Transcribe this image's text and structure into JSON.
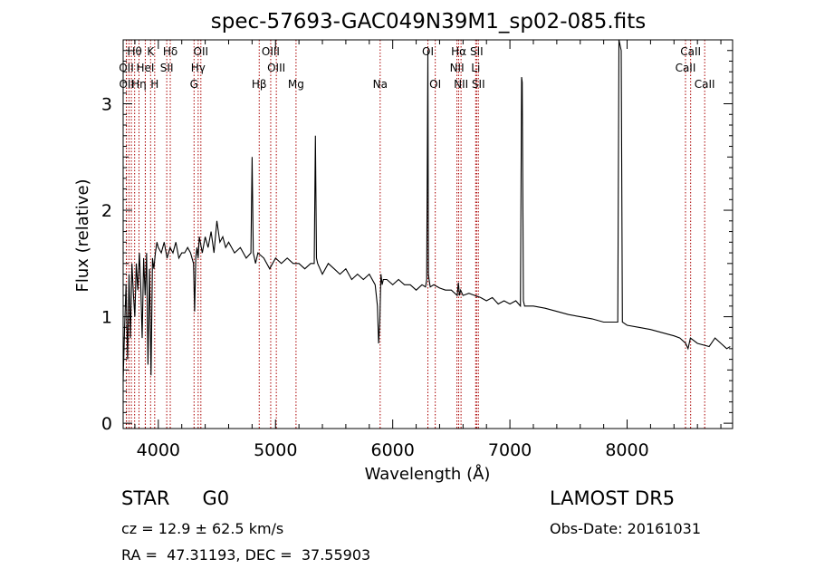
{
  "chart_data": {
    "type": "line",
    "title": "spec-57693-GAC049N39M1_sp02-085.fits",
    "xlabel": "Wavelength (Å)",
    "ylabel": "Flux (relative)",
    "xlim": [
      3700,
      8900
    ],
    "ylim": [
      -0.05,
      3.6
    ],
    "x_ticks": [
      4000,
      5000,
      6000,
      7000,
      8000
    ],
    "y_ticks": [
      0,
      1,
      2,
      3
    ],
    "line_color": "#000000",
    "marker_color": "#aa0000",
    "series": [
      {
        "x": [
          3700,
          3712,
          3725,
          3738,
          3750,
          3762,
          3775,
          3788,
          3800,
          3812,
          3825,
          3838,
          3850,
          3862,
          3875,
          3888,
          3900,
          3912,
          3925,
          3938,
          3950,
          3962,
          3975,
          3988,
          4000,
          4025,
          4050,
          4075,
          4100,
          4125,
          4150,
          4175,
          4200,
          4225,
          4250,
          4275,
          4300,
          4310,
          4320,
          4330,
          4340,
          4350,
          4375,
          4400,
          4425,
          4450,
          4475,
          4500,
          4525,
          4550,
          4575,
          4600,
          4650,
          4700,
          4750,
          4790,
          4800,
          4810,
          4820,
          4830,
          4850,
          4900,
          4950,
          5000,
          5050,
          5100,
          5150,
          5200,
          5250,
          5300,
          5330,
          5340,
          5350,
          5360,
          5400,
          5450,
          5500,
          5550,
          5600,
          5650,
          5700,
          5750,
          5800,
          5850,
          5870,
          5880,
          5890,
          5900,
          5910,
          5920,
          5950,
          6000,
          6050,
          6100,
          6150,
          6200,
          6250,
          6280,
          6290,
          6300,
          6305,
          6310,
          6320,
          6350,
          6400,
          6450,
          6500,
          6550,
          6560,
          6570,
          6580,
          6600,
          6650,
          6700,
          6750,
          6800,
          6850,
          6900,
          6950,
          7000,
          7050,
          7090,
          7100,
          7105,
          7115,
          7125,
          7200,
          7300,
          7400,
          7500,
          7600,
          7700,
          7800,
          7900,
          7920,
          7930,
          7950,
          7960,
          8000,
          8100,
          8200,
          8300,
          8400,
          8450,
          8500,
          8520,
          8540,
          8600,
          8700,
          8750,
          8800,
          8850,
          8880
        ],
        "y": [
          0.4,
          0.9,
          1.3,
          0.6,
          1.4,
          0.8,
          1.5,
          1.2,
          1.0,
          1.5,
          1.25,
          1.6,
          1.3,
          0.8,
          1.55,
          1.2,
          1.6,
          0.55,
          1.45,
          0.45,
          1.55,
          1.45,
          1.6,
          1.7,
          1.65,
          1.6,
          1.7,
          1.55,
          1.65,
          1.6,
          1.7,
          1.55,
          1.6,
          1.6,
          1.65,
          1.6,
          1.5,
          1.05,
          1.55,
          1.65,
          1.55,
          1.75,
          1.6,
          1.75,
          1.65,
          1.8,
          1.6,
          1.9,
          1.7,
          1.75,
          1.65,
          1.7,
          1.6,
          1.65,
          1.55,
          1.6,
          2.5,
          1.6,
          1.55,
          1.5,
          1.6,
          1.55,
          1.45,
          1.55,
          1.5,
          1.55,
          1.5,
          1.5,
          1.45,
          1.5,
          1.5,
          2.7,
          1.55,
          1.5,
          1.4,
          1.5,
          1.45,
          1.4,
          1.45,
          1.35,
          1.4,
          1.35,
          1.4,
          1.3,
          1.1,
          0.75,
          0.95,
          1.4,
          1.3,
          1.35,
          1.35,
          1.3,
          1.35,
          1.3,
          1.3,
          1.25,
          1.3,
          1.28,
          1.35,
          3.5,
          1.4,
          1.35,
          1.28,
          1.3,
          1.27,
          1.25,
          1.25,
          1.2,
          1.32,
          1.2,
          1.25,
          1.2,
          1.22,
          1.2,
          1.18,
          1.15,
          1.18,
          1.12,
          1.15,
          1.12,
          1.15,
          1.1,
          3.25,
          3.2,
          1.15,
          1.1,
          1.1,
          1.08,
          1.05,
          1.02,
          1.0,
          0.98,
          0.95,
          0.95,
          0.95,
          3.6,
          3.5,
          0.95,
          0.92,
          0.9,
          0.88,
          0.85,
          0.82,
          0.8,
          0.75,
          0.7,
          0.8,
          0.75,
          0.72,
          0.8,
          0.75,
          0.7,
          0.72
        ]
      }
    ],
    "lines": [
      {
        "label": "Hθ",
        "x": 3798,
        "row": 0
      },
      {
        "label": "K",
        "x": 3934,
        "row": 0
      },
      {
        "label": "Hδ",
        "x": 4102,
        "row": 0
      },
      {
        "label": "OII",
        "x": 4363,
        "row": 0
      },
      {
        "label": "OIII",
        "x": 4959,
        "row": 0
      },
      {
        "label": "OI",
        "x": 6300,
        "row": 0
      },
      {
        "label": "Hα",
        "x": 6563,
        "row": 0
      },
      {
        "label": "SII",
        "x": 6716,
        "row": 0
      },
      {
        "label": "CaII",
        "x": 8542,
        "row": 0
      },
      {
        "label": "OII",
        "x": 3727,
        "row": 1
      },
      {
        "label": "HeI",
        "x": 3889,
        "row": 1
      },
      {
        "label": "SII",
        "x": 4072,
        "row": 1
      },
      {
        "label": "Hγ",
        "x": 4340,
        "row": 1
      },
      {
        "label": "OIII",
        "x": 5007,
        "row": 1
      },
      {
        "label": "NII",
        "x": 6548,
        "row": 1
      },
      {
        "label": "Li",
        "x": 6708,
        "row": 1
      },
      {
        "label": "CaII",
        "x": 8498,
        "row": 1
      },
      {
        "label": "OII",
        "x": 3729,
        "row": 2
      },
      {
        "label": "Hη",
        "x": 3835,
        "row": 2
      },
      {
        "label": "H",
        "x": 3969,
        "row": 2
      },
      {
        "label": "G",
        "x": 4305,
        "row": 2
      },
      {
        "label": "Hβ",
        "x": 4861,
        "row": 2
      },
      {
        "label": "Mg",
        "x": 5175,
        "row": 2
      },
      {
        "label": "Na",
        "x": 5893,
        "row": 2
      },
      {
        "label": "OI",
        "x": 6363,
        "row": 2
      },
      {
        "label": "NII",
        "x": 6583,
        "row": 2
      },
      {
        "label": "SII",
        "x": 6731,
        "row": 2
      },
      {
        "label": "CaII",
        "x": 8662,
        "row": 2
      },
      {
        "label": "",
        "x": 3750,
        "row": -1
      },
      {
        "label": "",
        "x": 3770,
        "row": -1
      },
      {
        "label": "",
        "x": 3889,
        "row": -1
      }
    ]
  },
  "info": {
    "class": "STAR",
    "subclass": "G0",
    "survey": "LAMOST DR5",
    "cz": "cz = 12.9 ± 62.5 km/s",
    "obs_date": "Obs-Date: 20161031",
    "coords": "RA =  47.31193, DEC =  37.55903"
  }
}
